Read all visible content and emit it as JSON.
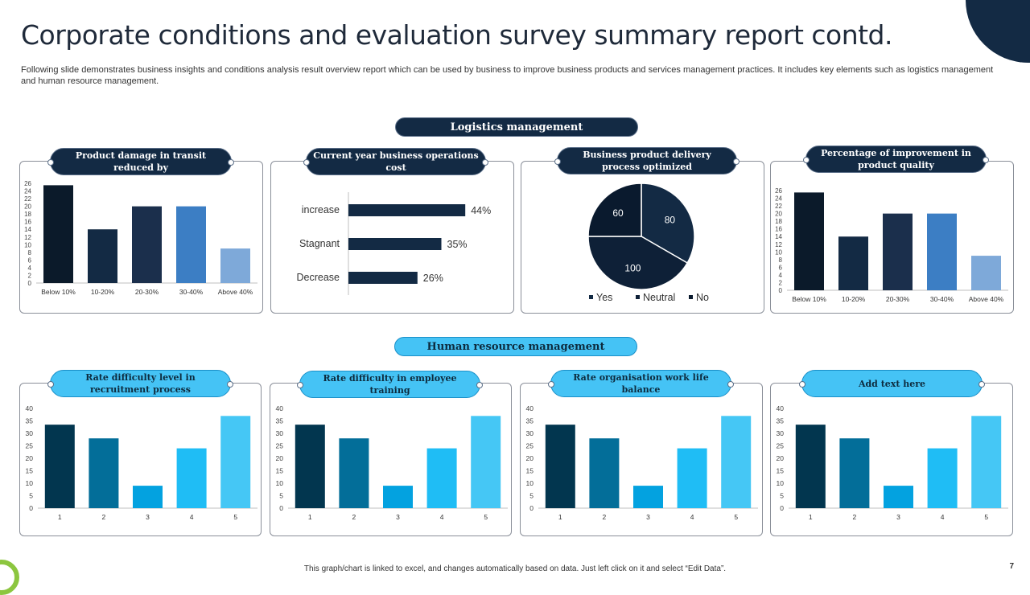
{
  "title": "Corporate conditions and evaluation survey summary report contd.",
  "subtitle": "Following slide demonstrates business insights and conditions analysis result overview report which can be used by business to improve business products and services management practices. It includes key elements such as logistics management and human resource management.",
  "sections": {
    "logistics": "Logistics management",
    "hr": "Human resource management"
  },
  "footnote": "This graph/chart is linked to excel, and changes automatically based on data. Just left click on it and select “Edit Data”.",
  "page_number": "7",
  "colors": {
    "navy": "#132a44",
    "accent": "#45c3f5",
    "dark_series": [
      "#0b1a2a",
      "#132a44",
      "#1b2f4c",
      "#3c7ec4",
      "#7ea9d9"
    ],
    "hr_series": [
      "#02364f",
      "#036e99",
      "#03a2e0",
      "#1fbdf5",
      "#45c7f5"
    ],
    "pie": [
      "#132a44",
      "#0e2037",
      "#0a1a2e"
    ]
  },
  "chart_data": [
    {
      "id": "chart1",
      "type": "bar",
      "title": "Product damage in transit reduced by",
      "categories": [
        "Below 10%",
        "10-20%",
        "20-30%",
        "30-40%",
        "Above 40%"
      ],
      "values": [
        25.5,
        14,
        20,
        20,
        9
      ],
      "ylim": [
        0,
        26
      ],
      "yticks": [
        0,
        2,
        4,
        6,
        8,
        10,
        12,
        14,
        16,
        18,
        20,
        22,
        24,
        26
      ],
      "xlabel": "",
      "ylabel": ""
    },
    {
      "id": "chart2",
      "type": "bar",
      "orientation": "horizontal",
      "title": "Current year business operations cost",
      "categories": [
        "increase",
        "Stagnant",
        "Decrease"
      ],
      "values": [
        44,
        35,
        26
      ],
      "value_labels": [
        "44%",
        "35%",
        "26%"
      ],
      "xlim": [
        0,
        100
      ]
    },
    {
      "id": "chart3",
      "type": "pie",
      "title": "Business product delivery process optimized",
      "categories": [
        "Yes",
        "Neutral",
        "No"
      ],
      "values": [
        80,
        100,
        60
      ],
      "legend": "bottom"
    },
    {
      "id": "chart4",
      "type": "bar",
      "title": "Percentage of improvement in product quality",
      "categories": [
        "Below 10%",
        "10-20%",
        "20-30%",
        "30-40%",
        "Above 40%"
      ],
      "values": [
        25.5,
        14,
        20,
        20,
        9
      ],
      "ylim": [
        0,
        26
      ],
      "yticks": [
        0,
        2,
        4,
        6,
        8,
        10,
        12,
        14,
        16,
        18,
        20,
        22,
        24,
        26
      ],
      "xlabel": "",
      "ylabel": ""
    },
    {
      "id": "chart5",
      "type": "bar",
      "title": "Rate difficulty level  in recruitment process",
      "categories": [
        "1",
        "2",
        "3",
        "4",
        "5"
      ],
      "values": [
        33.5,
        28,
        9,
        24,
        37
      ],
      "ylim": [
        0,
        40
      ],
      "yticks": [
        0,
        5,
        10,
        15,
        20,
        25,
        30,
        35,
        40
      ]
    },
    {
      "id": "chart6",
      "type": "bar",
      "title": "Rate difficulty in employee training",
      "categories": [
        "1",
        "2",
        "3",
        "4",
        "5"
      ],
      "values": [
        33.5,
        28,
        9,
        24,
        37
      ],
      "ylim": [
        0,
        40
      ],
      "yticks": [
        0,
        5,
        10,
        15,
        20,
        25,
        30,
        35,
        40
      ]
    },
    {
      "id": "chart7",
      "type": "bar",
      "title": "Rate organisation work life balance",
      "categories": [
        "1",
        "2",
        "3",
        "4",
        "5"
      ],
      "values": [
        33.5,
        28,
        9,
        24,
        37
      ],
      "ylim": [
        0,
        40
      ],
      "yticks": [
        0,
        5,
        10,
        15,
        20,
        25,
        30,
        35,
        40
      ]
    },
    {
      "id": "chart8",
      "type": "bar",
      "title": "Add text here",
      "categories": [
        "1",
        "2",
        "3",
        "4",
        "5"
      ],
      "values": [
        33.5,
        28,
        9,
        24,
        37
      ],
      "ylim": [
        0,
        40
      ],
      "yticks": [
        0,
        5,
        10,
        15,
        20,
        25,
        30,
        35,
        40
      ]
    }
  ]
}
